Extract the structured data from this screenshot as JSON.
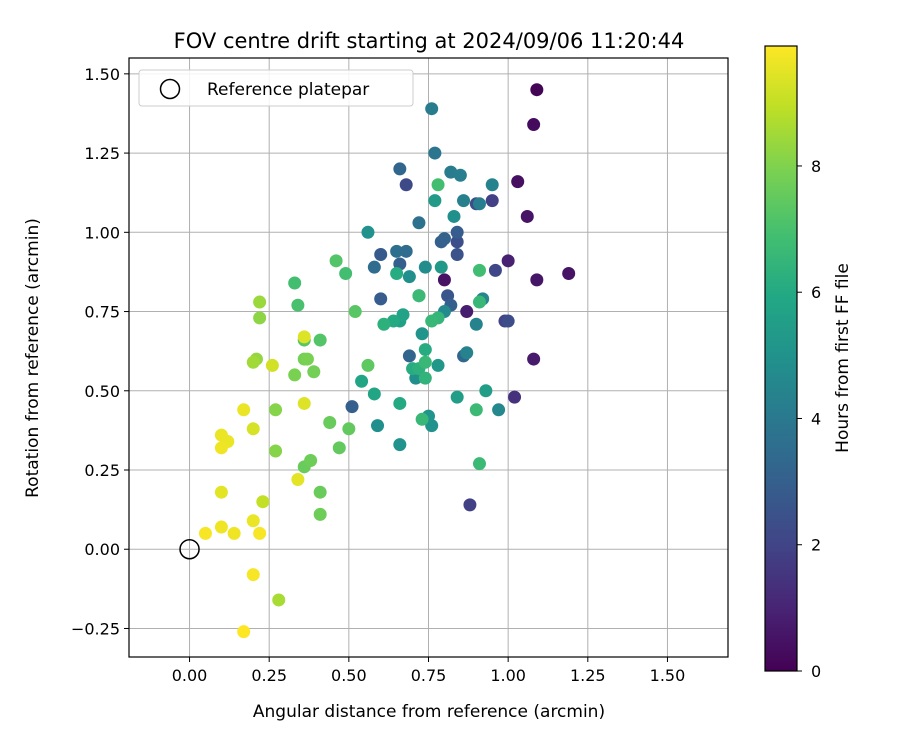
{
  "chart_data": {
    "type": "scatter",
    "title": "FOV centre drift starting at 2024/09/06 11:20:44",
    "xlabel": "Angular distance from reference (arcmin)",
    "ylabel": "Rotation from reference (arcmin)",
    "xlim": [
      -0.19,
      1.69
    ],
    "ylim": [
      -0.34,
      1.55
    ],
    "xticks": [
      0.0,
      0.25,
      0.5,
      0.75,
      1.0,
      1.25,
      1.5
    ],
    "xtick_labels": [
      "0.00",
      "0.25",
      "0.50",
      "0.75",
      "1.00",
      "1.25",
      "1.50"
    ],
    "yticks": [
      -0.25,
      0.0,
      0.25,
      0.5,
      0.75,
      1.0,
      1.25,
      1.5
    ],
    "ytick_labels": [
      "−0.25",
      "0.00",
      "0.25",
      "0.50",
      "0.75",
      "1.00",
      "1.25",
      "1.50"
    ],
    "grid": true,
    "colormap": "viridis",
    "colorbar": {
      "label": "Hours from first FF file",
      "range": [
        0,
        9.9
      ],
      "ticks": [
        0,
        2,
        4,
        6,
        8
      ],
      "tick_labels": [
        "0",
        "2",
        "4",
        "6",
        "8"
      ]
    },
    "legend": {
      "placement": "top-left",
      "entries": [
        {
          "label": "Reference platepar",
          "marker": "open-circle",
          "color": "#000000"
        }
      ]
    },
    "reference_point": {
      "x": 0.0,
      "y": 0.0,
      "label": "Reference platepar"
    },
    "series": [
      {
        "columns": [
          "x",
          "y",
          "hours"
        ],
        "points": [
          [
            1.09,
            1.45,
            0.1
          ],
          [
            1.08,
            1.34,
            0.3
          ],
          [
            1.03,
            1.16,
            0.4
          ],
          [
            1.06,
            1.05,
            0.5
          ],
          [
            1.09,
            0.85,
            0.6
          ],
          [
            1.19,
            0.87,
            0.5
          ],
          [
            1.08,
            0.6,
            0.7
          ],
          [
            0.8,
            0.85,
            0.5
          ],
          [
            0.87,
            0.75,
            0.8
          ],
          [
            1.0,
            0.91,
            0.9
          ],
          [
            1.02,
            0.48,
            1.4
          ],
          [
            0.88,
            0.14,
            1.9
          ],
          [
            0.95,
            1.1,
            1.9
          ],
          [
            0.96,
            0.88,
            2.1
          ],
          [
            0.99,
            0.72,
            2.0
          ],
          [
            1.0,
            0.72,
            2.3
          ],
          [
            0.9,
            1.09,
            2.3
          ],
          [
            0.68,
            1.15,
            2.2
          ],
          [
            0.84,
            0.93,
            2.5
          ],
          [
            0.84,
            0.97,
            2.4
          ],
          [
            0.81,
            0.8,
            2.6
          ],
          [
            0.82,
            0.77,
            3.0
          ],
          [
            0.84,
            1.0,
            2.9
          ],
          [
            0.79,
            0.97,
            3.0
          ],
          [
            0.8,
            0.98,
            3.1
          ],
          [
            0.86,
            0.61,
            3.3
          ],
          [
            0.69,
            0.61,
            3.2
          ],
          [
            0.6,
            0.93,
            2.8
          ],
          [
            0.6,
            0.79,
            2.9
          ],
          [
            0.66,
            0.9,
            3.0
          ],
          [
            0.51,
            0.45,
            3.0
          ],
          [
            0.58,
            0.89,
            3.5
          ],
          [
            0.66,
            1.2,
            3.3
          ],
          [
            0.65,
            0.94,
            3.6
          ],
          [
            0.68,
            0.94,
            3.5
          ],
          [
            0.72,
            1.03,
            3.7
          ],
          [
            0.77,
            1.25,
            3.9
          ],
          [
            0.76,
            1.39,
            4.1
          ],
          [
            0.82,
            1.19,
            4.1
          ],
          [
            0.85,
            1.18,
            4.2
          ],
          [
            0.86,
            1.1,
            4.3
          ],
          [
            0.91,
            1.09,
            4.2
          ],
          [
            0.95,
            1.15,
            4.4
          ],
          [
            0.87,
            0.62,
            4.4
          ],
          [
            0.9,
            0.71,
            4.4
          ],
          [
            0.92,
            0.79,
            4.5
          ],
          [
            0.8,
            0.75,
            4.7
          ],
          [
            0.72,
            0.8,
            4.8
          ],
          [
            0.74,
            0.89,
            4.8
          ],
          [
            0.69,
            0.86,
            4.9
          ],
          [
            0.83,
            1.05,
            4.9
          ],
          [
            0.76,
            0.39,
            5.0
          ],
          [
            0.97,
            0.44,
            4.6
          ],
          [
            0.59,
            0.39,
            4.9
          ],
          [
            0.71,
            0.54,
            4.9
          ],
          [
            0.66,
            0.33,
            5.0
          ],
          [
            0.56,
            1.0,
            5.0
          ],
          [
            0.73,
            0.68,
            5.1
          ],
          [
            0.75,
            0.42,
            5.1
          ],
          [
            0.78,
            0.58,
            5.2
          ],
          [
            0.79,
            0.89,
            5.3
          ],
          [
            0.77,
            1.1,
            5.4
          ],
          [
            0.93,
            0.5,
            5.5
          ],
          [
            0.84,
            0.48,
            5.5
          ],
          [
            0.66,
            0.72,
            5.6
          ],
          [
            0.67,
            0.74,
            5.7
          ],
          [
            0.54,
            0.53,
            5.8
          ],
          [
            0.58,
            0.49,
            5.8
          ],
          [
            0.64,
            0.72,
            6.0
          ],
          [
            0.66,
            0.46,
            6.0
          ],
          [
            0.65,
            0.87,
            6.1
          ],
          [
            0.74,
            0.63,
            6.1
          ],
          [
            0.7,
            0.57,
            6.1
          ],
          [
            0.61,
            0.71,
            6.3
          ],
          [
            0.72,
            0.57,
            6.3
          ],
          [
            0.74,
            0.54,
            6.4
          ],
          [
            0.78,
            0.73,
            6.5
          ],
          [
            0.73,
            0.41,
            6.6
          ],
          [
            0.74,
            0.59,
            6.6
          ],
          [
            0.76,
            0.72,
            6.6
          ],
          [
            0.72,
            0.8,
            6.7
          ],
          [
            0.91,
            0.78,
            6.6
          ],
          [
            0.91,
            0.88,
            6.8
          ],
          [
            0.9,
            0.44,
            6.7
          ],
          [
            0.91,
            0.27,
            6.7
          ],
          [
            0.78,
            1.15,
            6.9
          ],
          [
            0.49,
            0.87,
            6.9
          ],
          [
            0.33,
            0.84,
            6.9
          ],
          [
            0.34,
            0.77,
            7.0
          ],
          [
            0.46,
            0.91,
            7.2
          ],
          [
            0.52,
            0.75,
            7.3
          ],
          [
            0.41,
            0.66,
            7.2
          ],
          [
            0.36,
            0.66,
            7.3
          ],
          [
            0.56,
            0.58,
            7.4
          ],
          [
            0.5,
            0.38,
            7.5
          ],
          [
            0.47,
            0.32,
            7.5
          ],
          [
            0.44,
            0.4,
            7.6
          ],
          [
            0.41,
            0.18,
            7.6
          ],
          [
            0.41,
            0.11,
            7.7
          ],
          [
            0.36,
            0.26,
            7.6
          ],
          [
            0.38,
            0.28,
            7.7
          ],
          [
            0.39,
            0.56,
            7.8
          ],
          [
            0.36,
            0.6,
            7.8
          ],
          [
            0.37,
            0.6,
            7.9
          ],
          [
            0.33,
            0.55,
            7.9
          ],
          [
            0.27,
            0.44,
            8.1
          ],
          [
            0.27,
            0.31,
            8.1
          ],
          [
            0.22,
            0.73,
            8.2
          ],
          [
            0.22,
            0.78,
            8.4
          ],
          [
            0.21,
            0.6,
            8.3
          ],
          [
            0.2,
            0.59,
            8.5
          ],
          [
            0.28,
            -0.16,
            8.6
          ],
          [
            0.23,
            0.15,
            9.0
          ],
          [
            0.26,
            0.58,
            9.2
          ],
          [
            0.2,
            0.38,
            9.3
          ],
          [
            0.36,
            0.67,
            9.4
          ],
          [
            0.36,
            0.46,
            9.4
          ],
          [
            0.34,
            0.22,
            9.5
          ],
          [
            0.1,
            0.18,
            9.5
          ],
          [
            0.17,
            0.44,
            9.6
          ],
          [
            0.12,
            0.34,
            9.6
          ],
          [
            0.1,
            0.36,
            9.6
          ],
          [
            0.1,
            0.32,
            9.7
          ],
          [
            0.2,
            0.09,
            9.6
          ],
          [
            0.14,
            0.05,
            9.7
          ],
          [
            0.1,
            0.07,
            9.7
          ],
          [
            0.05,
            0.05,
            9.8
          ],
          [
            0.22,
            0.05,
            9.8
          ],
          [
            0.2,
            -0.08,
            9.8
          ],
          [
            0.17,
            -0.26,
            9.9
          ]
        ]
      }
    ]
  }
}
